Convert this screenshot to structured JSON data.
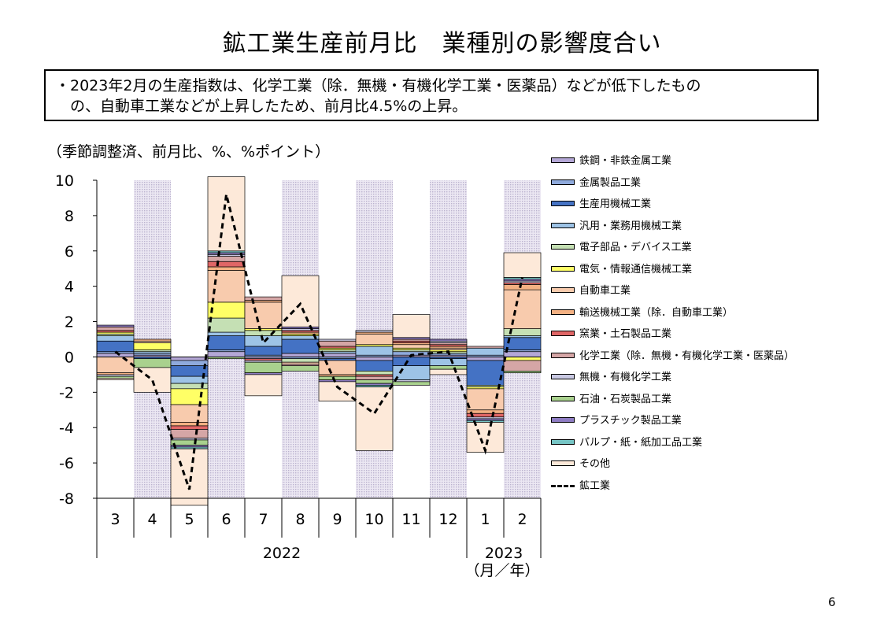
{
  "title": "鉱工業生産前月比　業種別の影響度合い",
  "summary_lines": [
    "・2023年2月の生産指数は、化学工業（除．無機・有機化学工業・医薬品）などが低下したもの",
    "　の、自動車工業などが上昇したため、前月比4.5%の上昇。"
  ],
  "units_label": "（季節調整済、前月比、%、%ポイント）",
  "page_number": "6",
  "chart_data": {
    "type": "bar",
    "stacked": true,
    "categories": [
      "3",
      "4",
      "5",
      "6",
      "7",
      "8",
      "9",
      "10",
      "11",
      "12",
      "1",
      "2"
    ],
    "year_groups": [
      {
        "label": "2022",
        "from": 0,
        "to": 9
      },
      {
        "label": "2023",
        "from": 10,
        "to": 11
      }
    ],
    "xlabel": "（月／年）",
    "ylim": [
      -8,
      10
    ],
    "yticks": [
      10,
      8,
      6,
      4,
      2,
      0,
      -2,
      -4,
      -6,
      -8
    ],
    "ytick_labels": [
      "10",
      "8",
      "6",
      "4",
      "2",
      "0",
      "-2",
      "-4",
      "-6",
      "-8"
    ],
    "shaded_months": [
      "4",
      "6",
      "8",
      "10",
      "12",
      "2"
    ],
    "legend_position": "right",
    "series": [
      {
        "name": "鉄鋼・非鉄金属工業",
        "color": "#b4a7d6",
        "values": [
          0.2,
          0.1,
          -0.2,
          0.3,
          -0.1,
          0.2,
          0.2,
          -0.2,
          0.1,
          0.1,
          -0.2,
          0.3
        ]
      },
      {
        "name": "金属製品工業",
        "color": "#8faadc",
        "values": [
          0.1,
          0.1,
          -0.3,
          0.1,
          0.1,
          -0.1,
          -0.1,
          0.1,
          0.2,
          0.1,
          0.1,
          0.1
        ]
      },
      {
        "name": "生産用機械工業",
        "color": "#4472c4",
        "values": [
          0.6,
          -0.1,
          -0.6,
          0.8,
          0.5,
          0.8,
          -0.1,
          -0.6,
          -0.5,
          -0.1,
          -1.4,
          0.7
        ]
      },
      {
        "name": "汎用・業務用機械工業",
        "color": "#9dc3e6",
        "values": [
          0.3,
          0.1,
          -0.4,
          0.2,
          0.6,
          0.2,
          0.1,
          0.5,
          -0.8,
          -0.4,
          0.4,
          0.1
        ]
      },
      {
        "name": "電子部品・デバイス工業",
        "color": "#c5e0b4",
        "values": [
          0.1,
          0.1,
          -0.3,
          0.8,
          0.3,
          -0.2,
          0.1,
          -0.2,
          0.1,
          0.1,
          -0.1,
          0.4
        ]
      },
      {
        "name": "電気・情報通信機械工業",
        "color": "#ffff66",
        "values": [
          0.1,
          0.4,
          -0.9,
          0.9,
          0.1,
          0.1,
          0.1,
          0.1,
          0.1,
          0.1,
          -0.1,
          -0.2
        ]
      },
      {
        "name": "自動車工業",
        "color": "#f8cbad",
        "values": [
          -0.9,
          0.1,
          -1.0,
          1.8,
          1.5,
          -0.1,
          -0.8,
          0.6,
          0.2,
          0.1,
          -1.2,
          2.2
        ]
      },
      {
        "name": "輸送機械工業（除．自動車工業）",
        "color": "#f4b183",
        "values": [
          -0.1,
          0.1,
          -0.2,
          0.2,
          0.1,
          0.1,
          -0.1,
          0.1,
          0.1,
          0.1,
          -0.2,
          0.3
        ]
      },
      {
        "name": "窯業・土石製品工業",
        "color": "#e06666",
        "values": [
          0.1,
          0.0,
          -0.2,
          0.3,
          -0.1,
          0.1,
          0.1,
          -0.1,
          0.1,
          0.1,
          -0.2,
          0.1
        ]
      },
      {
        "name": "化学工業（除．無機・有機化学工業・医薬品）",
        "color": "#d5a6a6",
        "values": [
          0.2,
          0.0,
          -0.5,
          0.3,
          0.2,
          -0.1,
          0.3,
          -0.2,
          0.1,
          0.1,
          0.1,
          -0.6
        ]
      },
      {
        "name": "無機・有機化学工業",
        "color": "#c9c9e3",
        "values": [
          -0.1,
          0.0,
          -0.1,
          0.1,
          -0.1,
          0.1,
          0.1,
          0.1,
          -0.1,
          0.1,
          -0.1,
          0.1
        ]
      },
      {
        "name": "石油・石炭製品工業",
        "color": "#a9d18e",
        "values": [
          -0.1,
          -0.5,
          -0.3,
          -0.1,
          -0.6,
          -0.3,
          -0.2,
          -0.2,
          -0.2,
          -0.2,
          0.0,
          -0.1
        ]
      },
      {
        "name": "プラスチック製品工業",
        "color": "#8e7cc3",
        "values": [
          0.1,
          0.0,
          -0.1,
          0.1,
          -0.1,
          0.1,
          -0.1,
          -0.1,
          0.1,
          0.1,
          -0.1,
          0.1
        ]
      },
      {
        "name": "パルプ・紙・紙加工品工業",
        "color": "#76c5c5",
        "values": [
          0.0,
          0.0,
          -0.1,
          0.1,
          0.0,
          0.0,
          0.0,
          -0.1,
          0.0,
          0.0,
          -0.1,
          0.1
        ]
      },
      {
        "name": "その他",
        "color": "#fde9d9",
        "values": [
          -0.1,
          -1.4,
          -3.2,
          4.2,
          -1.2,
          2.9,
          -1.1,
          -3.6,
          1.3,
          -0.3,
          -1.7,
          1.4
        ]
      }
    ],
    "line": {
      "name": "鉱工業",
      "values": [
        0.3,
        -1.3,
        -7.5,
        9.2,
        0.8,
        3.0,
        -1.7,
        -3.2,
        0.1,
        0.3,
        -5.3,
        4.5
      ]
    }
  }
}
